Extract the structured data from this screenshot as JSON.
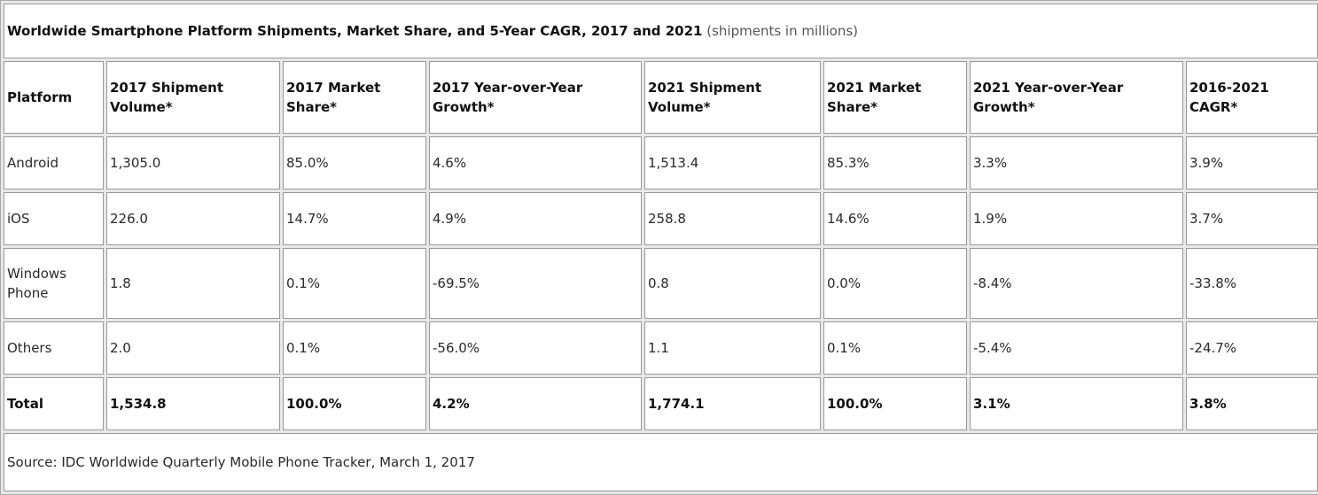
{
  "table": {
    "title": "Worldwide Smartphone Platform Shipments, Market Share, and 5-Year CAGR, 2017 and 2021",
    "subtitle": "(shipments in millions)",
    "headers": [
      "Platform",
      "2017 Shipment Volume*",
      "2017 Market Share*",
      "2017 Year-over-Year Growth*",
      "2021 Shipment Volume*",
      "2021 Market Share*",
      "2021 Year-over-Year Growth*",
      "2016-2021 CAGR*"
    ],
    "rows": [
      [
        "Android",
        "1,305.0",
        "85.0%",
        "4.6%",
        "1,513.4",
        "85.3%",
        "3.3%",
        "3.9%"
      ],
      [
        "iOS",
        "226.0",
        "14.7%",
        "4.9%",
        "258.8",
        "14.6%",
        "1.9%",
        "3.7%"
      ],
      [
        "Windows Phone",
        "1.8",
        "0.1%",
        "-69.5%",
        "0.8",
        "0.0%",
        "-8.4%",
        "-33.8%"
      ],
      [
        "Others",
        "2.0",
        "0.1%",
        "-56.0%",
        "1.1",
        "0.1%",
        "-5.4%",
        "-24.7%"
      ],
      [
        "Total",
        "1,534.8",
        "100.0%",
        "4.2%",
        "1,774.1",
        "100.0%",
        "3.1%",
        "3.8%"
      ]
    ],
    "source": "Source: IDC Worldwide Quarterly Mobile Phone Tracker, March 1, 2017"
  }
}
